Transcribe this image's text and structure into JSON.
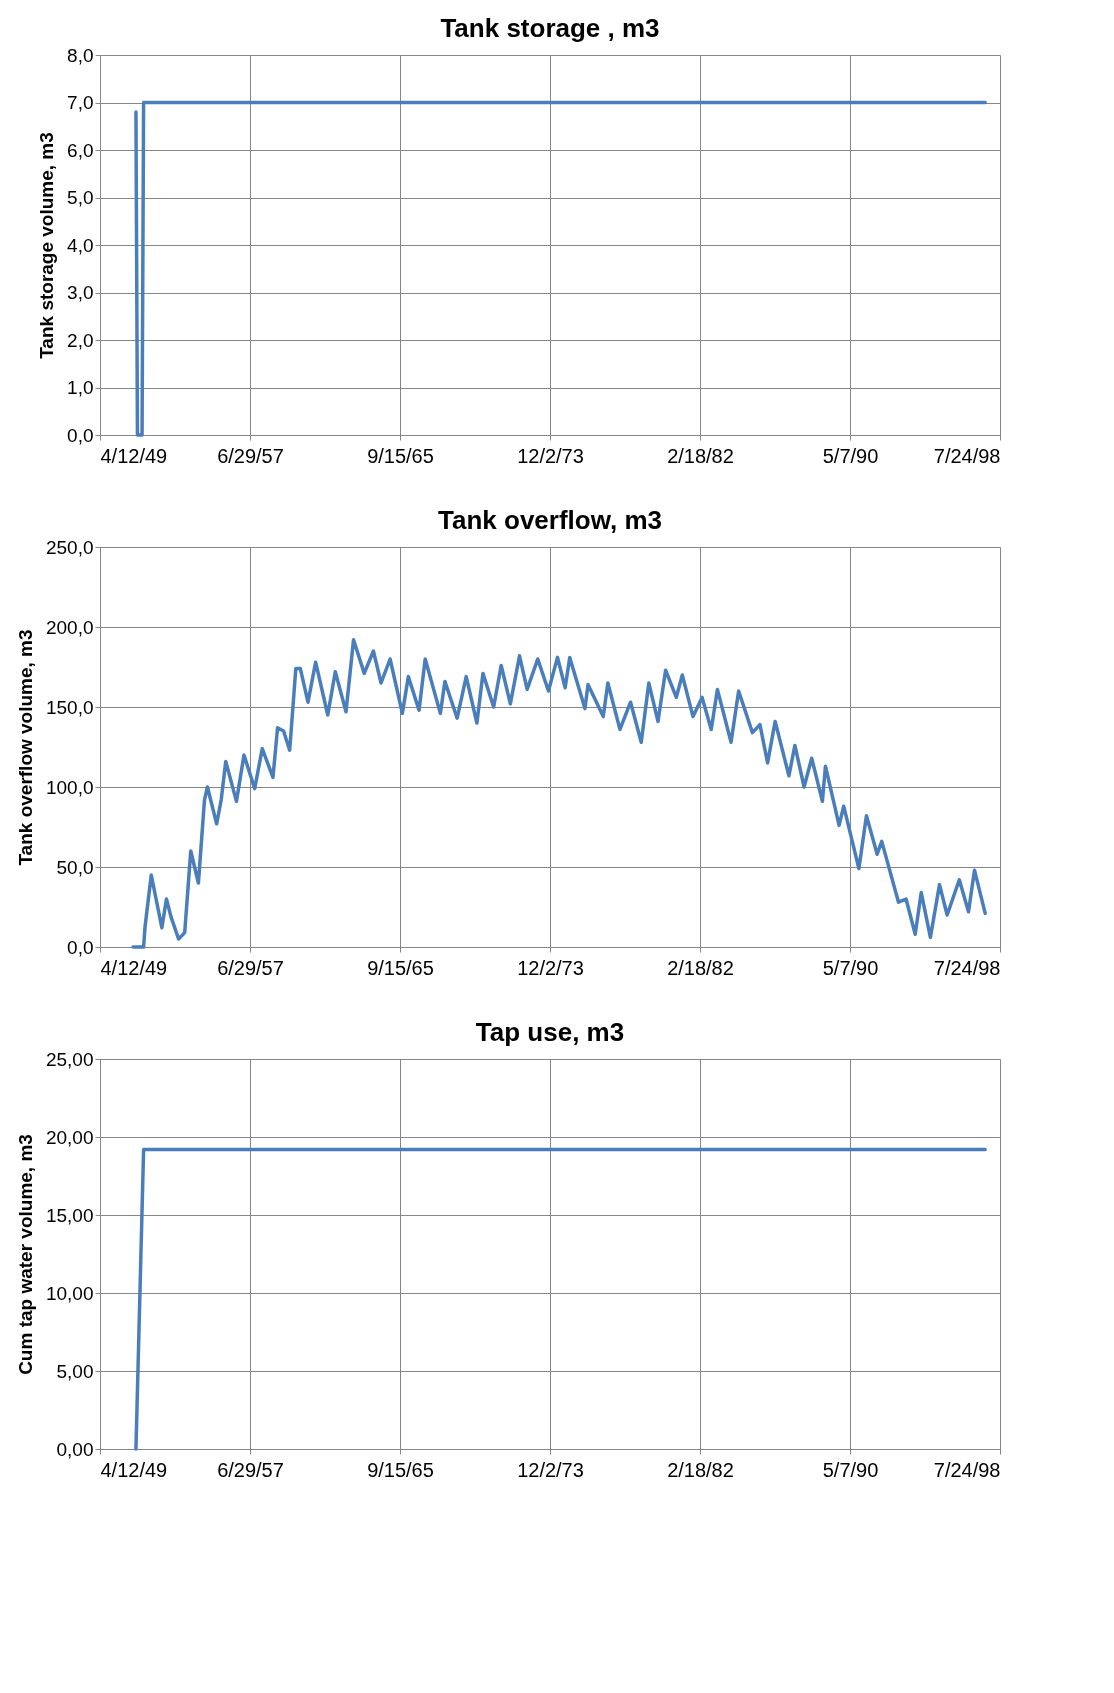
{
  "chart_data": [
    {
      "type": "line",
      "title": "Tank storage , m3",
      "ylabel": "Tank storage volume, m3",
      "x": [
        "1951-04",
        "1951-05",
        "1951-08",
        "1951-09",
        "1997-10"
      ],
      "series": [
        {
          "color": "#4a7ebb",
          "values": [
            6.8,
            0,
            0,
            7.0,
            7.0
          ]
        }
      ],
      "xlim": [
        "1949-04-12",
        "1998-07-24"
      ],
      "xticks": [
        {
          "value": "1949-04-12",
          "label": "4/12/49"
        },
        {
          "value": "1957-06-29",
          "label": "6/29/57"
        },
        {
          "value": "1965-09-15",
          "label": "9/15/65"
        },
        {
          "value": "1973-12-02",
          "label": "12/2/73"
        },
        {
          "value": "1982-02-18",
          "label": "2/18/82"
        },
        {
          "value": "1990-05-07",
          "label": "5/7/90"
        },
        {
          "value": "1998-07-24",
          "label": "7/24/98"
        }
      ],
      "ylim": [
        0,
        8
      ],
      "yticks": [
        {
          "value": 0,
          "label": "0,0"
        },
        {
          "value": 1,
          "label": "1,0"
        },
        {
          "value": 2,
          "label": "2,0"
        },
        {
          "value": 3,
          "label": "3,0"
        },
        {
          "value": 4,
          "label": "4,0"
        },
        {
          "value": 5,
          "label": "5,0"
        },
        {
          "value": 6,
          "label": "6,0"
        },
        {
          "value": 7,
          "label": "7,0"
        },
        {
          "value": 8,
          "label": "8,0"
        }
      ],
      "grid": true
    },
    {
      "type": "line",
      "title": "Tank overflow, m3",
      "ylabel": "Tank overflow volume, m3",
      "x": [
        "1951-02",
        "1951-09",
        "1951-10",
        "1952-02",
        "1952-09",
        "1952-12",
        "1953-03",
        "1953-08",
        "1953-12",
        "1954-04",
        "1954-09",
        "1955-01",
        "1955-03",
        "1955-09",
        "1955-12",
        "1956-03",
        "1956-10",
        "1957-03",
        "1957-10",
        "1958-03",
        "1958-10",
        "1959-01",
        "1959-05",
        "1959-09",
        "1960-01",
        "1960-04",
        "1960-09",
        "1961-02",
        "1961-10",
        "1962-03",
        "1962-10",
        "1963-03",
        "1963-10",
        "1964-04",
        "1964-09",
        "1965-03",
        "1965-11",
        "1966-03",
        "1966-10",
        "1967-02",
        "1967-12",
        "1968-03",
        "1968-11",
        "1969-05",
        "1969-12",
        "1970-04",
        "1970-11",
        "1971-04",
        "1971-10",
        "1972-04",
        "1972-09",
        "1973-04",
        "1973-11",
        "1974-05",
        "1974-10",
        "1975-01",
        "1975-11",
        "1976-01",
        "1976-11",
        "1977-02",
        "1977-10",
        "1978-05",
        "1978-12",
        "1979-05",
        "1979-11",
        "1980-04",
        "1980-11",
        "1981-03",
        "1981-10",
        "1982-04",
        "1982-10",
        "1983-02",
        "1983-11",
        "1984-04",
        "1985-01",
        "1985-06",
        "1985-11",
        "1986-04",
        "1987-01",
        "1987-05",
        "1987-11",
        "1988-04",
        "1988-11",
        "1989-01",
        "1989-10",
        "1990-01",
        "1990-11",
        "1991-04",
        "1991-11",
        "1992-02",
        "1993-01",
        "1993-06",
        "1993-12",
        "1994-04",
        "1994-10",
        "1995-04",
        "1995-09",
        "1996-05",
        "1996-11",
        "1997-03",
        "1997-10"
      ],
      "series": [
        {
          "color": "#4a7ebb",
          "values": [
            0,
            0,
            13,
            45,
            12,
            30,
            19,
            5,
            9,
            60,
            40,
            92,
            100,
            77,
            92,
            116,
            91,
            120,
            99,
            124,
            106,
            137,
            135,
            123,
            174,
            174,
            153,
            178,
            145,
            172,
            147,
            192,
            171,
            185,
            165,
            180,
            146,
            169,
            148,
            180,
            146,
            166,
            143,
            169,
            140,
            171,
            150,
            176,
            152,
            182,
            161,
            180,
            160,
            181,
            162,
            181,
            149,
            164,
            144,
            165,
            136,
            153,
            128,
            165,
            141,
            173,
            156,
            170,
            144,
            156,
            136,
            161,
            128,
            160,
            134,
            139,
            115,
            141,
            107,
            126,
            100,
            118,
            91,
            113,
            76,
            88,
            49,
            82,
            58,
            66,
            28,
            30,
            8,
            34,
            6,
            39,
            20,
            42,
            22,
            48,
            21
          ]
        }
      ],
      "xlim": [
        "1949-04-12",
        "1998-07-24"
      ],
      "xticks": [
        {
          "value": "1949-04-12",
          "label": "4/12/49"
        },
        {
          "value": "1957-06-29",
          "label": "6/29/57"
        },
        {
          "value": "1965-09-15",
          "label": "9/15/65"
        },
        {
          "value": "1973-12-02",
          "label": "12/2/73"
        },
        {
          "value": "1982-02-18",
          "label": "2/18/82"
        },
        {
          "value": "1990-05-07",
          "label": "5/7/90"
        },
        {
          "value": "1998-07-24",
          "label": "7/24/98"
        }
      ],
      "ylim": [
        0,
        250
      ],
      "yticks": [
        {
          "value": 0,
          "label": "0,0"
        },
        {
          "value": 50,
          "label": "50,0"
        },
        {
          "value": 100,
          "label": "100,0"
        },
        {
          "value": 150,
          "label": "150,0"
        },
        {
          "value": 200,
          "label": "200,0"
        },
        {
          "value": 250,
          "label": "250,0"
        }
      ],
      "grid": true
    },
    {
      "type": "line",
      "title": "Tap use, m3",
      "ylabel": "Cum tap water volume, m3",
      "x": [
        "1951-04",
        "1951-09",
        "1997-10"
      ],
      "series": [
        {
          "color": "#4a7ebb",
          "values": [
            0,
            19.2,
            19.2
          ]
        }
      ],
      "xlim": [
        "1949-04-12",
        "1998-07-24"
      ],
      "xticks": [
        {
          "value": "1949-04-12",
          "label": "4/12/49"
        },
        {
          "value": "1957-06-29",
          "label": "6/29/57"
        },
        {
          "value": "1965-09-15",
          "label": "9/15/65"
        },
        {
          "value": "1973-12-02",
          "label": "12/2/73"
        },
        {
          "value": "1982-02-18",
          "label": "2/18/82"
        },
        {
          "value": "1990-05-07",
          "label": "5/7/90"
        },
        {
          "value": "1998-07-24",
          "label": "7/24/98"
        }
      ],
      "ylim": [
        0,
        25
      ],
      "yticks": [
        {
          "value": 0,
          "label": "0,00"
        },
        {
          "value": 5,
          "label": "5,00"
        },
        {
          "value": 10,
          "label": "10,00"
        },
        {
          "value": 15,
          "label": "15,00"
        },
        {
          "value": 20,
          "label": "20,00"
        },
        {
          "value": 25,
          "label": "25,00"
        }
      ],
      "grid": true
    }
  ]
}
